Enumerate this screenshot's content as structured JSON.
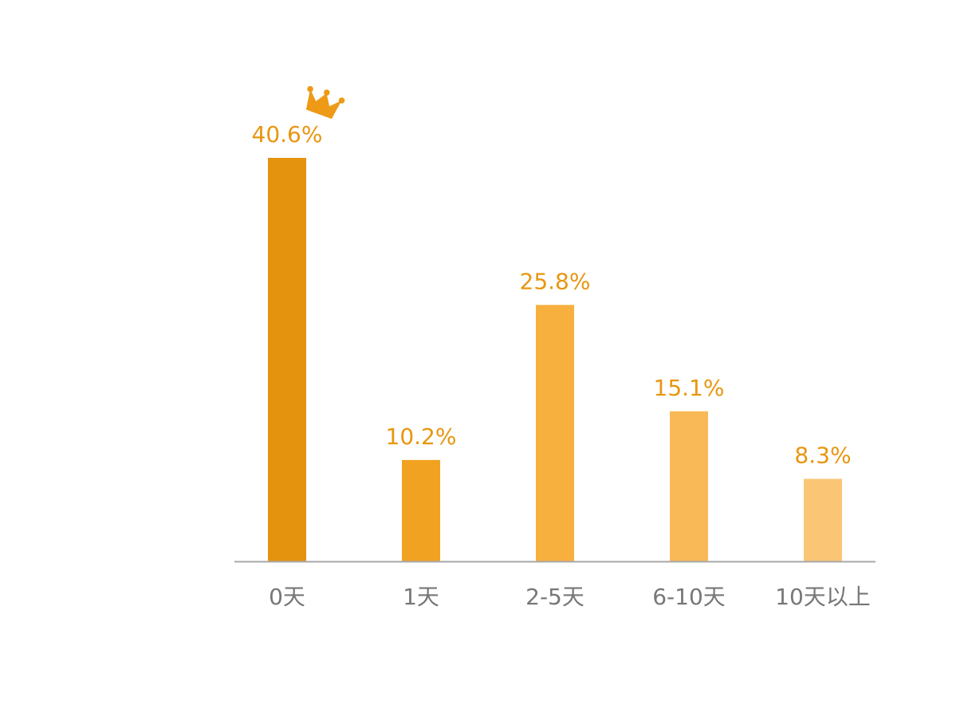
{
  "chart_data": {
    "type": "bar",
    "categories": [
      "0天",
      "1天",
      "2-5天",
      "6-10天",
      "10天以上"
    ],
    "values": [
      40.6,
      10.2,
      25.8,
      15.1,
      8.3
    ],
    "value_labels": [
      "40.6%",
      "10.2%",
      "25.8%",
      "15.1%",
      "8.3%"
    ],
    "unit": "%",
    "ylim": [
      0,
      40.6
    ],
    "grid": false,
    "legend": "none",
    "highlight_icon": "crown-icon",
    "highlight_index": 0,
    "colors": {
      "bars": [
        "#E3930D",
        "#F1A221",
        "#F7AF3D",
        "#F9B957",
        "#FAC676"
      ],
      "value_label": "#E8960F",
      "tick_label": "#777777",
      "axis": "#A8A8A8",
      "crown": "#EE9A16"
    }
  }
}
